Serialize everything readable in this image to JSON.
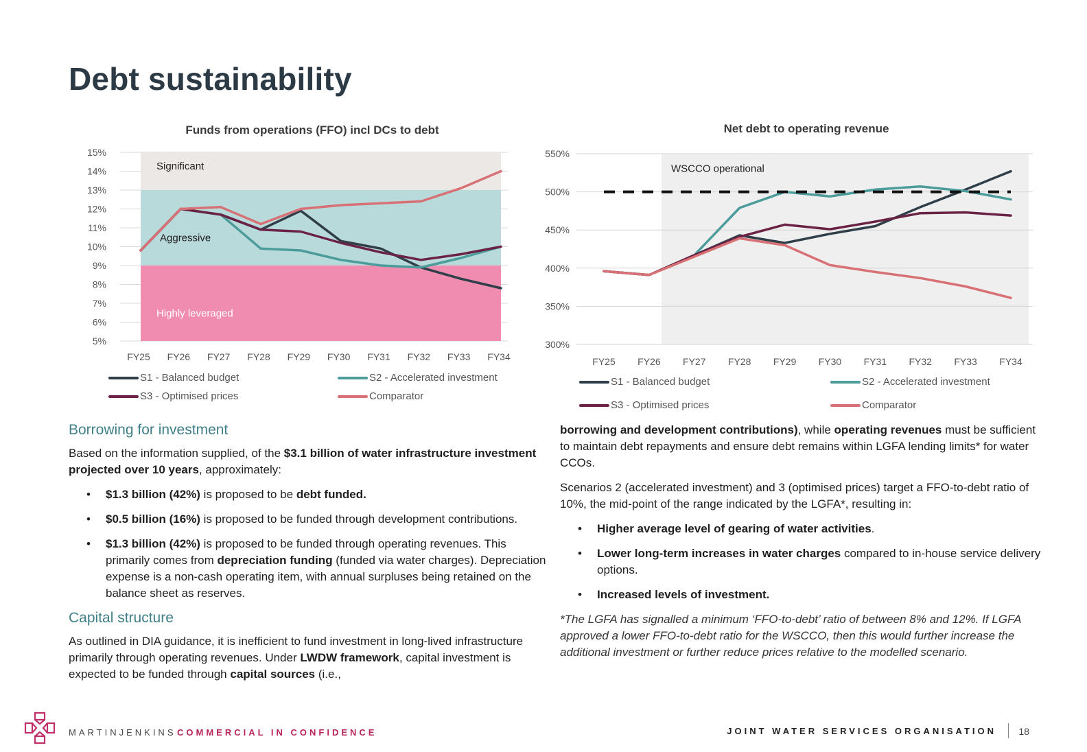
{
  "page": {
    "title": "Debt sustainability"
  },
  "chart_data": [
    {
      "type": "line",
      "title": "Funds from operations (FFO) incl DCs to debt",
      "categories": [
        "FY25",
        "FY26",
        "FY27",
        "FY28",
        "FY29",
        "FY30",
        "FY31",
        "FY32",
        "FY33",
        "FY34"
      ],
      "yticks": [
        "15%",
        "14%",
        "13%",
        "12%",
        "11%",
        "10%",
        "9%",
        "8%",
        "7%",
        "6%",
        "5%"
      ],
      "ylim": [
        5,
        15
      ],
      "bands": [
        {
          "label": "Significant",
          "from": 13,
          "to": 15,
          "color": "#ebe8e6"
        },
        {
          "label": "Aggressive",
          "from": 9,
          "to": 13,
          "color": "#b9dadb"
        },
        {
          "label": "Highly  leveraged",
          "from": 5,
          "to": 9,
          "color": "#ef8cb0"
        }
      ],
      "series": [
        {
          "name": "S1 - Balanced budget",
          "color": "#2f3e48",
          "values": [
            9.8,
            12.0,
            11.7,
            10.9,
            11.9,
            10.3,
            9.9,
            8.9,
            8.3,
            7.8
          ]
        },
        {
          "name": "S2 - Accelerated investment",
          "color": "#4b9c9b",
          "values": [
            9.8,
            12.0,
            11.7,
            9.9,
            9.8,
            9.3,
            9.0,
            8.9,
            9.4,
            10.0
          ]
        },
        {
          "name": "S3 - Optimised prices",
          "color": "#6b2345",
          "values": [
            9.8,
            12.0,
            11.7,
            10.9,
            10.8,
            10.2,
            9.7,
            9.3,
            9.6,
            10.0
          ]
        },
        {
          "name": "Comparator",
          "color": "#d87175",
          "values": [
            9.8,
            12.0,
            12.1,
            11.2,
            12.0,
            12.2,
            12.3,
            12.4,
            13.1,
            14.0
          ]
        }
      ]
    },
    {
      "type": "line",
      "title": "Net debt to operating revenue",
      "categories": [
        "FY25",
        "FY26",
        "FY27",
        "FY28",
        "FY29",
        "FY30",
        "FY31",
        "FY32",
        "FY33",
        "FY34"
      ],
      "yticks": [
        "550%",
        "500%",
        "450%",
        "400%",
        "350%",
        "300%"
      ],
      "ylim": [
        300,
        550
      ],
      "shaded_label": "WSCCO operational",
      "threshold": 500,
      "series": [
        {
          "name": "S1 - Balanced budget",
          "color": "#2f3e48",
          "values": [
            396,
            391,
            417,
            443,
            433,
            445,
            455,
            480,
            503,
            527
          ]
        },
        {
          "name": "S2 - Accelerated investment",
          "color": "#4b9c9b",
          "values": [
            396,
            391,
            417,
            479,
            500,
            494,
            503,
            507,
            501,
            490
          ]
        },
        {
          "name": "S3 - Optimised prices",
          "color": "#6b2345",
          "values": [
            396,
            391,
            417,
            441,
            457,
            451,
            461,
            472,
            473,
            469
          ]
        },
        {
          "name": "Comparator",
          "color": "#d87175",
          "values": [
            396,
            391,
            415,
            439,
            430,
            404,
            395,
            387,
            376,
            361
          ]
        }
      ]
    }
  ],
  "left_text": {
    "heading1": "Borrowing for investment",
    "intro_a": "Based on the information supplied, of the ",
    "intro_bold": "$3.1 billion of water infrastructure investment projected over 10 years",
    "intro_b": ", approximately:",
    "b1_bold": "$1.3 billion (42%)",
    "b1_text": " is proposed to be ",
    "b1_bold2": "debt funded.",
    "b2_bold": "$0.5 billion (16%)",
    "b2_text": " is proposed to be funded through development contributions.",
    "b3_bold": "$1.3 billion (42%)",
    "b3_text": " is proposed to be funded through operating revenues. This primarily comes from ",
    "b3_bold2": "depreciation funding",
    "b3_text2": " (funded via water charges). Depreciation expense is a non-cash operating item, with annual surpluses being retained on the balance sheet as reserves.",
    "heading2": "Capital structure",
    "cap_a": "As outlined in DIA guidance, it is inefficient to fund investment in long-lived infrastructure primarily through operating revenues. Under ",
    "cap_bold": "LWDW framework",
    "cap_b": ", capital investment is expected to be funded through ",
    "cap_bold2": "capital sources",
    "cap_c": " (i.e.,"
  },
  "right_text": {
    "p1_bold": "borrowing and development contributions)",
    "p1_a": ", while ",
    "p1_bold2": "operating revenues",
    "p1_b": " must be sufficient to maintain debt repayments and ensure debt remains within LGFA lending limits* for water CCOs.",
    "p2": "Scenarios 2 (accelerated investment) and 3 (optimised prices) target a FFO-to-debt ratio of 10%, the mid-point of the range indicated by the LGFA*, resulting in:",
    "r1_bold": "Higher average level of gearing of water activities",
    "r1_text": ".",
    "r2_bold": "Lower long-term increases in water charges",
    "r2_text": " compared to in-house service delivery options.",
    "r3_bold": "Increased levels of investment.",
    "footnote": "*The LGFA has signalled a minimum ‘FFO-to-debt’ ratio of between 8% and 12%. If LGFA approved a lower FFO-to-debt ratio for the WSCCO, then this would further increase the additional investment or further reduce prices relative to the modelled scenario."
  },
  "footer": {
    "brand": "MARTINJENKINS",
    "confidential": "COMMERCIAL IN CONFIDENCE",
    "org": "JOINT WATER SERVICES ORGANISATION",
    "page_number": "18"
  },
  "colors": {
    "accent": "#3f7f87",
    "brand_pink": "#b8235a"
  }
}
